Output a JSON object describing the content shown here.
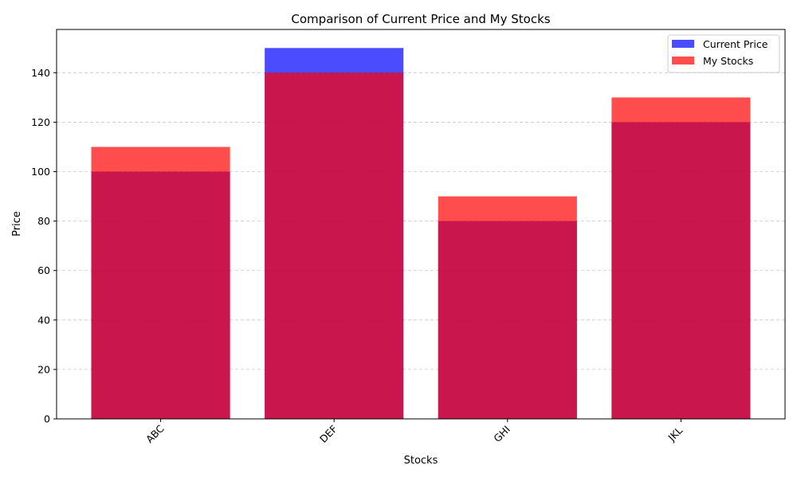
{
  "chart_data": {
    "type": "bar",
    "title": "Comparison of Current Price and My Stocks",
    "xlabel": "Stocks",
    "ylabel": "Price",
    "categories": [
      "ABC",
      "DEF",
      "GHI",
      "JKL"
    ],
    "series": [
      {
        "name": "Current Price",
        "values": [
          100,
          150,
          80,
          120
        ],
        "color": "#0000ff",
        "opacity": 0.7
      },
      {
        "name": "My Stocks",
        "values": [
          110,
          140,
          90,
          130
        ],
        "color": "#ff0000",
        "opacity": 0.7
      }
    ],
    "ylim": [
      0,
      157.5
    ],
    "yticks": [
      0,
      20,
      40,
      60,
      80,
      100,
      120,
      140
    ],
    "grid": {
      "axis": "y",
      "style": "dashed"
    },
    "legend_position": "top-right",
    "xtick_rotation": 45
  }
}
